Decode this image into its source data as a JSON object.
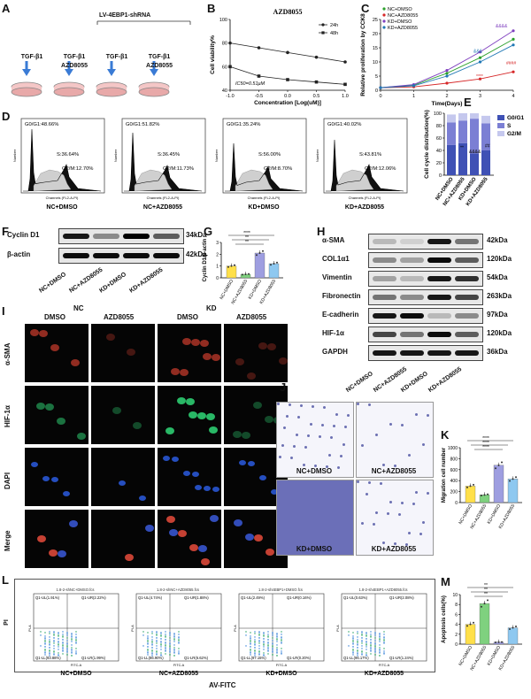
{
  "panels": {
    "A": {
      "label": "A",
      "header": "LV-4EBP1-shRNA",
      "dishes": [
        "TGF-β1",
        "TGF-β1\nAZD8055",
        "TGF-β1",
        "TGF-β1\nAZD8055"
      ]
    },
    "B": {
      "label": "B",
      "title": "AZD8055",
      "ylabel": "Cell viability%",
      "xlabel": "Concentration [Log(uM)]",
      "ic50": "IC50=0.51μM",
      "legend": [
        "24h",
        "48h"
      ]
    },
    "C": {
      "label": "C",
      "ylabel": "Relative proliferation by CCK8",
      "xlabel": "Time(Days)",
      "legend": [
        "NC+DMSO",
        "NC+AZD8055",
        "KD+DMSO",
        "KD+AZD8055"
      ],
      "marks": [
        "&&&&",
        "&&&",
        "****",
        "####"
      ]
    },
    "D": {
      "label": "D",
      "histos": [
        {
          "g0": "G0/G1:48.66%",
          "s": "S:36.64%",
          "g2": "G2/M:12.70%",
          "name": "NC+DMSO"
        },
        {
          "g0": "G0/G1:51.82%",
          "s": "S:36.45%",
          "g2": "G2/M:11.73%",
          "name": "NC+AZD8055"
        },
        {
          "g0": "G0/G1:35.24%",
          "s": "S:56.00%",
          "g2": "G2/M:8.70%",
          "name": "KD+DMSO"
        },
        {
          "g0": "G0/G1:40.02%",
          "s": "S:43.81%",
          "g2": "G2/M:12.06%",
          "name": "KD+AZD8055"
        }
      ],
      "axis_y": "Number",
      "axis_x": "Channels (FL2-A-PI)"
    },
    "E": {
      "label": "E",
      "ylabel": "Cell cycle distribution(%)",
      "legend": [
        "G0/G1",
        "S",
        "G2/M"
      ],
      "groups": [
        "NC+DMSO",
        "NC+AZD8055",
        "KD+DMSO",
        "KD+AZD8055"
      ]
    },
    "F": {
      "label": "F",
      "bands": [
        {
          "name": "Cyclin D1",
          "kda": "34kDa"
        },
        {
          "name": "β-actin",
          "kda": "42kDa"
        }
      ],
      "groups": [
        "NC+DMSO",
        "NC+AZD8055",
        "KD+DMSO",
        "KD+AZD8055"
      ]
    },
    "G": {
      "label": "G",
      "ylabel": "Cyclin D1/β-actin",
      "groups": [
        "NC+DMSO",
        "NC+AZD8055",
        "KD+DMSO",
        "KD+AZD8055"
      ],
      "sig": [
        "****",
        "**",
        "**"
      ]
    },
    "H": {
      "label": "H",
      "bands": [
        {
          "name": "α-SMA",
          "kda": "42kDa"
        },
        {
          "name": "COL1α1",
          "kda": "120kDa"
        },
        {
          "name": "Vimentin",
          "kda": "54kDa"
        },
        {
          "name": "Fibronectin",
          "kda": "263kDa"
        },
        {
          "name": "E-cadherin",
          "kda": "97kDa"
        },
        {
          "name": "HIF-1α",
          "kda": "120kDa"
        },
        {
          "name": "GAPDH",
          "kda": "36kDa"
        }
      ],
      "groups": [
        "NC+DMSO",
        "NC+AZD8055",
        "KD+DMSO",
        "KD+AZD8055"
      ]
    },
    "I": {
      "label": "I",
      "top": [
        "NC",
        "KD"
      ],
      "cols": [
        "DMSO",
        "AZD8055",
        "DMSO",
        "AZD8055"
      ],
      "rows": [
        "α-SMA",
        "HIF-1α",
        "DAPI",
        "Merge"
      ]
    },
    "J": {
      "label": "J",
      "names": [
        "NC+DMSO",
        "NC+AZD8055",
        "KD+DMSO",
        "KD+AZD8055"
      ]
    },
    "K": {
      "label": "K",
      "ylabel": "Migration cell number",
      "groups": [
        "NC+DMSO",
        "NC+AZD8055",
        "KD+DMSO",
        "KD+AZD8055"
      ],
      "sig": [
        "****",
        "****",
        "****"
      ]
    },
    "L": {
      "label": "L",
      "plots": [
        {
          "title": "1.8-2-shNC+DMSO.fcs",
          "ul": "Q1-UL(1.91%)",
          "ur": "Q1-UR(2.22%)",
          "ll": "Q1-LL(93.88%)",
          "lr": "Q1-LR(1.99%)",
          "name": "NC+DMSO"
        },
        {
          "title": "1.8-2-shNC+AZD8055.fcs",
          "ul": "Q1-UL(4.74%)",
          "ur": "Q1-UR(1.88%)",
          "ll": "Q1-LL(86.90%)",
          "lr": "Q1-LR(6.62%)",
          "name": "NC+AZD8055"
        },
        {
          "title": "1.8-2-sh4EBP1+DMSO.fcs",
          "ul": "Q1-UL(2.49%)",
          "ur": "Q1-UR(0.16%)",
          "ll": "Q1-LL(97.15%)",
          "lr": "Q1-LR(0.20%)",
          "name": "KD+DMSO"
        },
        {
          "title": "1.8-2-sh4EBP1+AZD8055.fcs",
          "ul": "Q1-UL(0.63%)",
          "ur": "Q1-UR(2.08%)",
          "ll": "Q1-LL(96.17%)",
          "lr": "Q1-LR(1.24%)",
          "name": "KD+AZD8055"
        }
      ],
      "axis_y": "PI",
      "axis_x": "AV-FITC",
      "tick_y": "PI-A",
      "tick_x": "FITC-A"
    },
    "M": {
      "label": "M",
      "ylabel": "Apoptosis cells(%)",
      "groups": [
        "NC+DMSO",
        "NC+AZD8055",
        "KD+DMSO",
        "KD+AZD8055"
      ],
      "sig": [
        "**",
        "**",
        "**"
      ]
    }
  },
  "chart_data": [
    {
      "type": "line",
      "panel": "B",
      "title": "AZD8055",
      "xlabel": "Concentration [Log(uM)]",
      "ylabel": "Cell viability%",
      "x": [
        -1.0,
        -0.5,
        0.0,
        0.5,
        1.0
      ],
      "series": [
        {
          "name": "24h",
          "values": [
            80,
            76,
            72,
            68,
            64
          ]
        },
        {
          "name": "48h",
          "values": [
            60,
            52,
            49,
            47,
            45
          ]
        }
      ],
      "xlim": [
        -1.0,
        1.0
      ],
      "ylim": [
        40,
        100
      ],
      "yticks": [
        40,
        60,
        80,
        100
      ],
      "xticks": [
        "-1.0",
        "-0.5",
        "0.0",
        "0.5",
        "1.0"
      ]
    },
    {
      "type": "line",
      "panel": "C",
      "xlabel": "Time(Days)",
      "ylabel": "Relative proliferation by CCK8",
      "x": [
        0,
        1,
        2,
        3,
        4
      ],
      "series": [
        {
          "name": "NC+DMSO",
          "color": "#2ca02c",
          "values": [
            0.9,
            1.8,
            6.0,
            11.5,
            18.0
          ]
        },
        {
          "name": "NC+AZD8055",
          "color": "#d62728",
          "values": [
            0.9,
            1.2,
            2.5,
            4.0,
            6.5
          ]
        },
        {
          "name": "KD+DMSO",
          "color": "#7f3fbf",
          "values": [
            0.9,
            2.0,
            7.0,
            13.5,
            21.0
          ]
        },
        {
          "name": "KD+AZD8055",
          "color": "#1f77b4",
          "values": [
            0.9,
            1.6,
            5.0,
            10.0,
            16.0
          ]
        }
      ],
      "ylim": [
        0,
        25
      ],
      "yticks": [
        0,
        5,
        10,
        15,
        20,
        25
      ]
    },
    {
      "type": "bar",
      "panel": "E",
      "ylabel": "Cell cycle distribution(%)",
      "categories": [
        "NC+DMSO",
        "NC+AZD8055",
        "KD+DMSO",
        "KD+AZD8055"
      ],
      "series": [
        {
          "name": "G0/G1",
          "color": "#3f51b5",
          "values": [
            48.66,
            51.82,
            35.24,
            40.02
          ]
        },
        {
          "name": "S",
          "color": "#7b7fd4",
          "values": [
            36.64,
            36.45,
            56.0,
            43.81
          ]
        },
        {
          "name": "G2/M",
          "color": "#c5c8ee",
          "values": [
            12.7,
            11.73,
            8.7,
            12.06
          ]
        }
      ],
      "ylim": [
        0,
        100
      ],
      "yticks": [
        0,
        20,
        40,
        60,
        80,
        100
      ]
    },
    {
      "type": "bar",
      "panel": "G",
      "ylabel": "Cyclin D1/β-actin",
      "categories": [
        "NC+DMSO",
        "NC+AZD8055",
        "KD+DMSO",
        "KD+AZD8055"
      ],
      "colors": [
        "#ffe04a",
        "#7fd17f",
        "#9e9ee0",
        "#8ec8f0"
      ],
      "values": [
        1.0,
        0.3,
        2.1,
        1.2
      ],
      "ylim": [
        0,
        3
      ],
      "yticks": [
        0,
        1,
        2,
        3
      ]
    },
    {
      "type": "bar",
      "panel": "K",
      "ylabel": "Migration cell number",
      "categories": [
        "NC+DMSO",
        "NC+AZD8055",
        "KD+DMSO",
        "KD+AZD8055"
      ],
      "colors": [
        "#ffe04a",
        "#7fd17f",
        "#9e9ee0",
        "#8ec8f0"
      ],
      "values": [
        300,
        140,
        680,
        430
      ],
      "ylim": [
        0,
        1000
      ],
      "yticks": [
        0,
        200,
        400,
        600,
        800,
        1000
      ]
    },
    {
      "type": "bar",
      "panel": "M",
      "ylabel": "Apoptosis cells(%)",
      "categories": [
        "NC+DMSO",
        "NC+AZD8055",
        "KD+DMSO",
        "KD+AZD8055"
      ],
      "colors": [
        "#ffe04a",
        "#7fd17f",
        "#9e9ee0",
        "#8ec8f0"
      ],
      "values": [
        4.0,
        8.2,
        0.4,
        3.3
      ],
      "ylim": [
        0,
        10
      ],
      "yticks": [
        0,
        2,
        4,
        6,
        8,
        10
      ]
    }
  ]
}
